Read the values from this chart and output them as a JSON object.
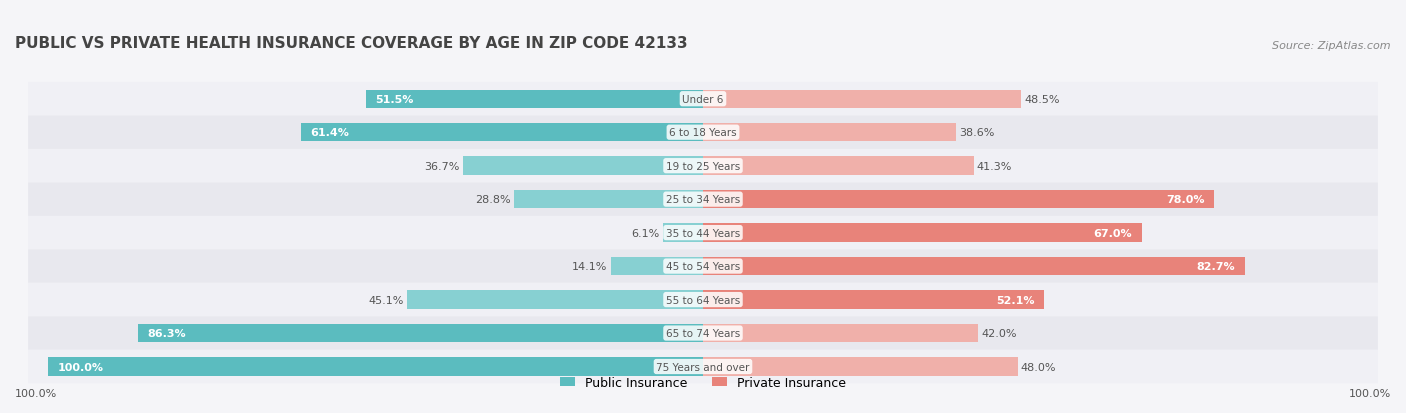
{
  "title": "PUBLIC VS PRIVATE HEALTH INSURANCE COVERAGE BY AGE IN ZIP CODE 42133",
  "source": "Source: ZipAtlas.com",
  "categories": [
    "Under 6",
    "6 to 18 Years",
    "19 to 25 Years",
    "25 to 34 Years",
    "35 to 44 Years",
    "45 to 54 Years",
    "55 to 64 Years",
    "65 to 74 Years",
    "75 Years and over"
  ],
  "public_values": [
    51.5,
    61.4,
    36.7,
    28.8,
    6.1,
    14.1,
    45.1,
    86.3,
    100.0
  ],
  "private_values": [
    48.5,
    38.6,
    41.3,
    78.0,
    67.0,
    82.7,
    52.1,
    42.0,
    48.0
  ],
  "public_color": "#5bbcbf",
  "private_color": "#e8837a",
  "public_light_color": "#87d0d2",
  "private_light_color": "#f0b0aa",
  "row_bg_color_odd": "#f0f0f5",
  "row_bg_color_even": "#e8e8ee",
  "title_color": "#444444",
  "label_dark": "#555555",
  "label_white": "#ffffff",
  "max_value": 100.0,
  "bar_height": 0.55,
  "background_color": "#f5f5f8",
  "bottom_labels": [
    "100.0%",
    "100.0%"
  ],
  "legend_labels": [
    "Public Insurance",
    "Private Insurance"
  ]
}
